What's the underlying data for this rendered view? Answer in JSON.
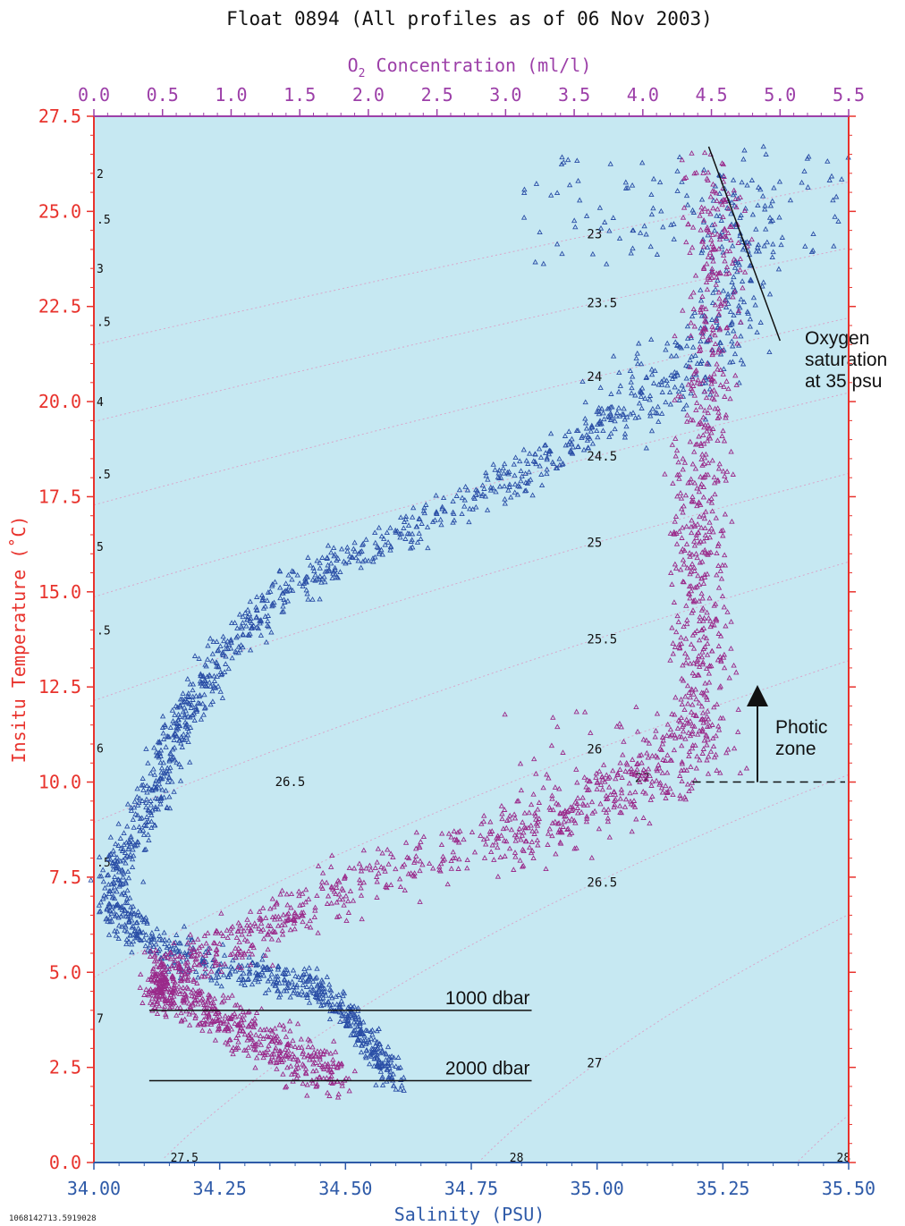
{
  "chart_data": {
    "type": "scatter",
    "title": "Float 0894  (All profiles as of 06 Nov 2003)",
    "xlabel": "Salinity (PSU)",
    "ylabel": "Insitu Temperature (˚C)",
    "x2label": "O2 Concentration (ml/l)",
    "x2label_main": "O",
    "x2label_sub": "2",
    "x2label_rest": " Concentration (ml/l)",
    "xlim": [
      34.0,
      35.5
    ],
    "ylim": [
      0.0,
      27.5
    ],
    "x2lim": [
      0.0,
      5.5
    ],
    "x_ticks": [
      "34.00",
      "34.25",
      "34.50",
      "34.75",
      "35.00",
      "35.25",
      "35.50"
    ],
    "y_ticks": [
      "0.0",
      "2.5",
      "5.0",
      "7.5",
      "10.0",
      "12.5",
      "15.0",
      "17.5",
      "20.0",
      "22.5",
      "25.0",
      "27.5"
    ],
    "x2_ticks": [
      "0.0",
      "0.5",
      "1.0",
      "1.5",
      "2.0",
      "2.5",
      "3.0",
      "3.5",
      "4.0",
      "4.5",
      "5.0",
      "5.5"
    ],
    "footer_id": "1068142713.5919028",
    "colors": {
      "plot_bg": "#c6e8f2",
      "temp_axis": "#e8322c",
      "oxygen_axis": "#9c3fa8",
      "salinity_axis": "#2e5aa8",
      "salinity_points": "#2a4ea6",
      "oxygen_points": "#9a2a8a",
      "isopycnal": "#d9a6c9"
    },
    "series": [
      {
        "marker": "triangle",
        "path": [
          [
            35.3,
            25.6
          ],
          [
            35.28,
            22.8
          ],
          [
            35.2,
            21.0
          ],
          [
            35.08,
            20.2
          ],
          [
            34.96,
            19.0
          ],
          [
            34.82,
            17.9
          ],
          [
            34.66,
            16.8
          ],
          [
            34.5,
            15.9
          ],
          [
            34.38,
            15.0
          ],
          [
            34.28,
            13.8
          ],
          [
            34.22,
            12.5
          ],
          [
            34.16,
            11.2
          ],
          [
            34.13,
            10.0
          ],
          [
            34.09,
            8.8
          ],
          [
            34.04,
            7.6
          ],
          [
            34.05,
            6.6
          ],
          [
            34.1,
            5.9
          ],
          [
            34.2,
            5.3
          ],
          [
            34.34,
            4.9
          ],
          [
            34.44,
            4.6
          ],
          [
            34.5,
            4.0
          ],
          [
            34.55,
            3.0
          ],
          [
            34.61,
            2.2
          ]
        ]
      },
      {
        "marker": "triangle",
        "path": [
          [
            35.23,
            26.2
          ],
          [
            35.24,
            23.4
          ],
          [
            35.22,
            20.6
          ],
          [
            35.2,
            17.5
          ],
          [
            35.21,
            14.5
          ],
          [
            35.2,
            12.0
          ],
          [
            35.17,
            10.4
          ],
          [
            35.03,
            9.6
          ],
          [
            34.85,
            8.6
          ],
          [
            34.6,
            7.7
          ],
          [
            34.4,
            6.6
          ],
          [
            34.26,
            5.6
          ],
          [
            34.14,
            5.0
          ],
          [
            34.12,
            4.6
          ],
          [
            34.2,
            4.2
          ],
          [
            34.3,
            3.5
          ],
          [
            34.4,
            2.8
          ],
          [
            34.5,
            2.2
          ]
        ]
      }
    ],
    "isopycnals": [
      {
        "label": "23",
        "sigma": 23.0
      },
      {
        "label": "23.5",
        "sigma": 23.5
      },
      {
        "label": "24",
        "sigma": 24.0
      },
      {
        "label": "24.5",
        "sigma": 24.5
      },
      {
        "label": "25",
        "sigma": 25.0
      },
      {
        "label": "25.5",
        "sigma": 25.5
      },
      {
        "label": "26",
        "sigma": 26.0
      },
      {
        "label": "26.5",
        "sigma": 26.5
      },
      {
        "label": "27",
        "sigma": 27.0
      },
      {
        "label": "27.5",
        "sigma": 27.5
      },
      {
        "label": "28",
        "sigma": 28.0
      }
    ],
    "isopycnal_inline_labels": [
      "26.5",
      "27"
    ],
    "left_edge_labels": [
      "2",
      ".5",
      "3",
      ".5",
      "4",
      ".5",
      "5",
      ".5",
      "6",
      ".5",
      "7"
    ],
    "bottom_partial_labels": [
      "27.5",
      "28",
      "28"
    ],
    "annotations": {
      "oxygen_saturation": [
        "Oxygen",
        "saturation",
        "at 35 psu"
      ],
      "photic_zone": [
        "Photic",
        "zone"
      ],
      "depth_1000": "1000 dbar",
      "depth_2000": "2000 dbar"
    },
    "reference_lines": {
      "oxygen_saturation_line": {
        "o2": [
          4.48,
          5.0
        ],
        "temp": [
          26.7,
          21.6
        ]
      },
      "photic_zone_temp": 10.0,
      "photic_zone_salinity": [
        35.19,
        35.5
      ],
      "depth_1000_temp": 4.0,
      "depth_2000_temp": 2.15,
      "depth_line_salinity": [
        34.11,
        34.87
      ]
    }
  }
}
